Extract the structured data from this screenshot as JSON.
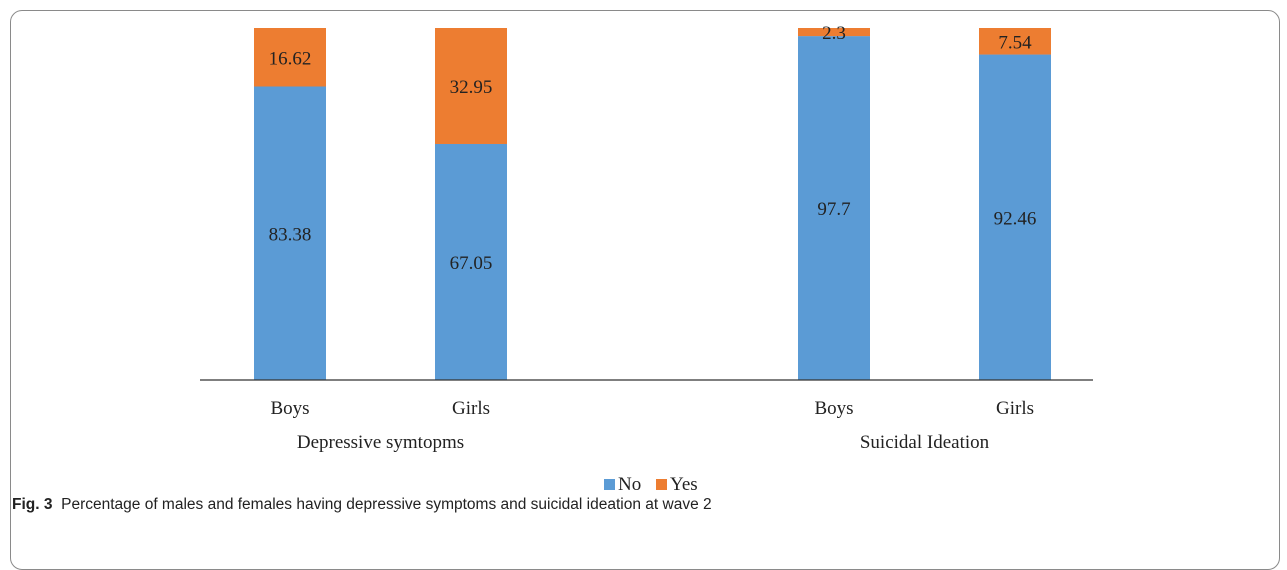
{
  "chart_data": {
    "type": "bar",
    "stacked": true,
    "groups": [
      {
        "label": "Depressive symtopms",
        "categories": [
          "Boys",
          "Girls"
        ]
      },
      {
        "label": "Suicidal Ideation",
        "categories": [
          "Boys",
          "Girls"
        ]
      }
    ],
    "series": [
      {
        "name": "No",
        "color": "#5b9bd5",
        "values": [
          83.38,
          67.05,
          97.7,
          92.46
        ],
        "labels": [
          "83.38",
          "67.05",
          "97.7",
          "92.46"
        ]
      },
      {
        "name": "Yes",
        "color": "#ed7d31",
        "values": [
          16.62,
          32.95,
          2.3,
          7.54
        ],
        "labels": [
          "16.62",
          "32.95",
          "2.3",
          "7.54"
        ]
      }
    ],
    "ylim": [
      0,
      100
    ],
    "legend_position": "bottom",
    "grid": false
  },
  "caption": {
    "fig_label": "Fig. 3",
    "text": "Percentage of males and females having depressive symptoms and suicidal ideation at wave 2"
  }
}
